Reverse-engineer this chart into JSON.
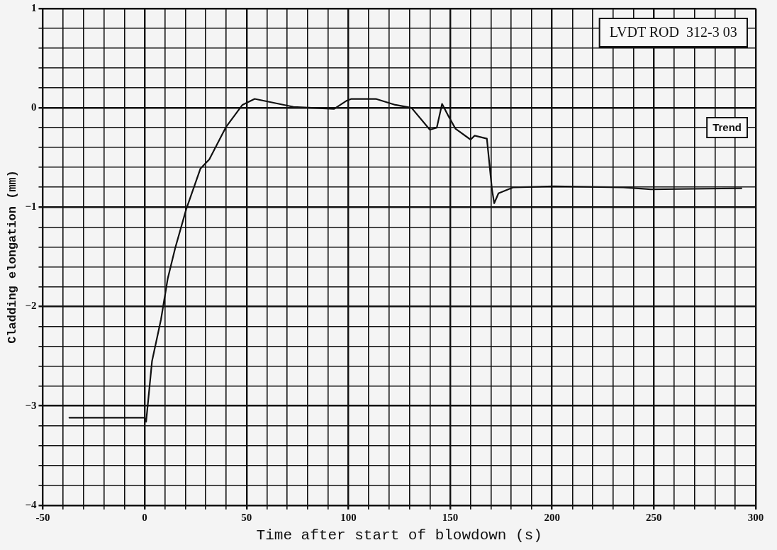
{
  "chart_data": {
    "type": "line",
    "xlabel": "Time after start of blowdown (s)",
    "ylabel": "Cladding elongation (mm)",
    "annotations": [
      "LVDT ROD  312-3 03",
      "Trend"
    ],
    "series": [
      {
        "color": "#111111",
        "x": [
          -37,
          0,
          0.7,
          3.6,
          8,
          11.3,
          15,
          20.4,
          27.4,
          31.7,
          40,
          48,
          54,
          73,
          82,
          93,
          99,
          101.5,
          113.5,
          123,
          131,
          140,
          143.4,
          146,
          149.3,
          152.6,
          160,
          162,
          168,
          170.5,
          171.6,
          173.7,
          181,
          201,
          235,
          248.5,
          293
        ],
        "values": [
          -3.12,
          -3.12,
          -3.16,
          -2.55,
          -2.13,
          -1.72,
          -1.41,
          -1.02,
          -0.61,
          -0.52,
          -0.19,
          0.03,
          0.09,
          0.01,
          0,
          -0.01,
          0.07,
          0.09,
          0.09,
          0.03,
          0,
          -0.22,
          -0.2,
          0.04,
          -0.09,
          -0.21,
          -0.32,
          -0.28,
          -0.31,
          -0.82,
          -0.96,
          -0.86,
          -0.8,
          -0.79,
          -0.8,
          -0.82,
          -0.81
        ]
      }
    ],
    "xlim": [
      -50,
      300
    ],
    "xticks": [
      -50,
      {
        "value": -40,
        "label": null
      },
      {
        "value": -30,
        "label": null
      },
      {
        "value": -20,
        "label": null
      },
      {
        "value": -10,
        "label": null
      },
      0,
      {
        "value": 10,
        "label": null
      },
      {
        "value": 20,
        "label": null
      },
      {
        "value": 30,
        "label": null
      },
      {
        "value": 40,
        "label": null
      },
      50,
      {
        "value": 60,
        "label": null
      },
      {
        "value": 70,
        "label": null
      },
      {
        "value": 80,
        "label": null
      },
      {
        "value": 90,
        "label": null
      },
      100,
      {
        "value": 110,
        "label": null
      },
      {
        "value": 120,
        "label": null
      },
      {
        "value": 130,
        "label": null
      },
      {
        "value": 140,
        "label": null
      },
      150,
      {
        "value": 160,
        "label": null
      },
      {
        "value": 170,
        "label": null
      },
      {
        "value": 180,
        "label": null
      },
      {
        "value": 190,
        "label": null
      },
      200,
      {
        "value": 210,
        "label": null
      },
      {
        "value": 220,
        "label": null
      },
      {
        "value": 230,
        "label": null
      },
      {
        "value": 240,
        "label": null
      },
      250,
      {
        "value": 260,
        "label": null
      },
      {
        "value": 270,
        "label": null
      },
      {
        "value": 280,
        "label": null
      },
      {
        "value": 290,
        "label": null
      },
      300
    ],
    "ylim": [
      -4,
      1
    ],
    "yticks": [
      -4,
      {
        "value": -3.8,
        "label": null
      },
      {
        "value": -3.6,
        "label": null
      },
      {
        "value": -3.4,
        "label": null
      },
      {
        "value": -3.2,
        "label": null
      },
      -3,
      {
        "value": -2.8,
        "label": null
      },
      {
        "value": -2.6,
        "label": null
      },
      {
        "value": -2.4,
        "label": null
      },
      {
        "value": -2.2,
        "label": null
      },
      -2,
      {
        "value": -1.8,
        "label": null
      },
      {
        "value": -1.6,
        "label": null
      },
      {
        "value": -1.4,
        "label": null
      },
      {
        "value": -1.2,
        "label": null
      },
      -1,
      {
        "value": -0.8,
        "label": null
      },
      {
        "value": -0.6,
        "label": null
      },
      {
        "value": -0.4,
        "label": null
      },
      {
        "value": -0.2,
        "label": null
      },
      0,
      {
        "value": 0.2,
        "label": null
      },
      {
        "value": 0.4,
        "label": null
      },
      {
        "value": 0.6,
        "label": null
      },
      {
        "value": 0.8,
        "label": null
      },
      1
    ],
    "grid": true,
    "legend": false,
    "marker": "none",
    "line_style": "solid"
  }
}
